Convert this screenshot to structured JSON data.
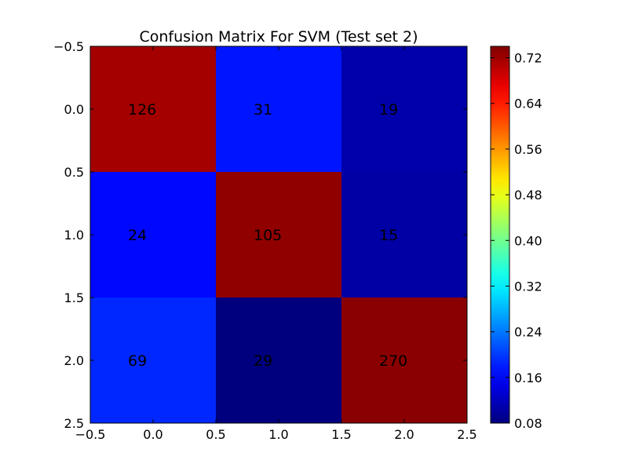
{
  "chart_data": {
    "type": "heatmap",
    "title": "Confusion Matrix For SVM (Test set 2)",
    "counts": [
      [
        126,
        31,
        19
      ],
      [
        24,
        105,
        15
      ],
      [
        69,
        29,
        270
      ]
    ],
    "normalized": [
      [
        0.716,
        0.176,
        0.108
      ],
      [
        0.167,
        0.729,
        0.104
      ],
      [
        0.188,
        0.079,
        0.733
      ]
    ],
    "xlim": [
      -0.5,
      2.5
    ],
    "ylim": [
      2.5,
      -0.5
    ],
    "xticks": [
      "−0.5",
      "0.0",
      "0.5",
      "1.0",
      "1.5",
      "2.0",
      "2.5"
    ],
    "yticks": [
      "−0.5",
      "0.0",
      "0.5",
      "1.0",
      "1.5",
      "2.0",
      "2.5"
    ],
    "colorbar": {
      "colormap": "jet",
      "range": [
        0.08,
        0.74
      ],
      "ticks": [
        "0.72",
        "0.64",
        "0.56",
        "0.48",
        "0.40",
        "0.32",
        "0.24",
        "0.16",
        "0.08"
      ],
      "tick_values": [
        0.72,
        0.64,
        0.56,
        0.48,
        0.4,
        0.32,
        0.24,
        0.16,
        0.08
      ]
    },
    "grid": false,
    "legend": "none"
  }
}
